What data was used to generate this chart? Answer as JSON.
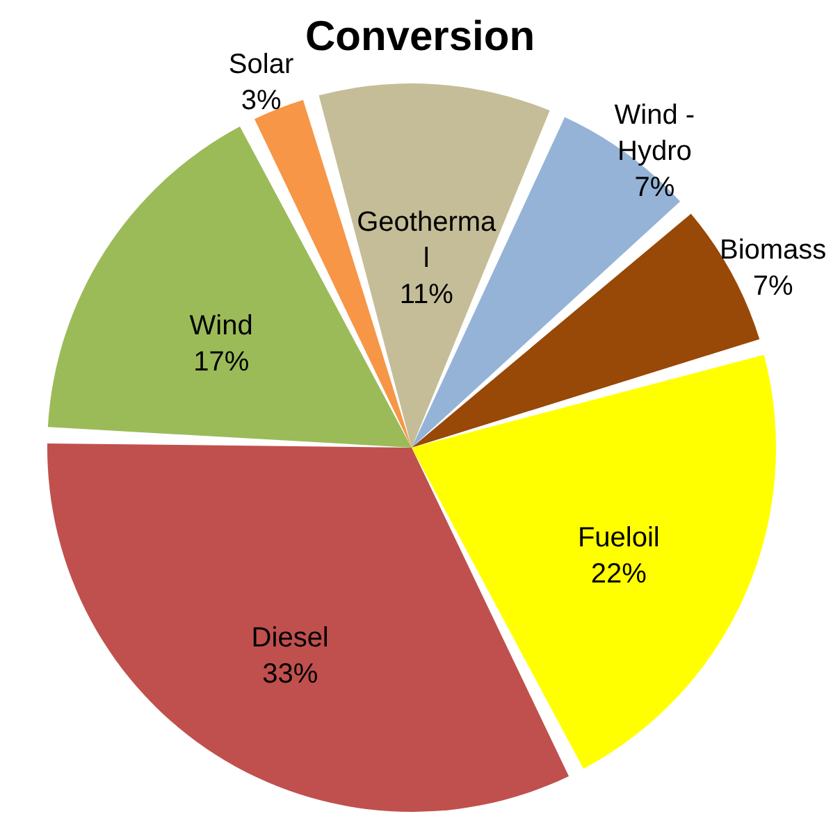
{
  "chart_data": {
    "type": "pie",
    "title": "Conversion",
    "categories": [
      "Geothermal",
      "Wind - Hydro",
      "Biomass",
      "Fueloil",
      "Diesel",
      "Wind",
      "Solar"
    ],
    "values": [
      11,
      7,
      7,
      22,
      33,
      17,
      3
    ],
    "colors": [
      "#c4bd97",
      "#95b3d7",
      "#984807",
      "#ffff00",
      "#c0504d",
      "#9bbb59",
      "#f79646"
    ],
    "value_labels": [
      "11%",
      "7%",
      "7%",
      "22%",
      "33%",
      "17%",
      "3%"
    ]
  }
}
